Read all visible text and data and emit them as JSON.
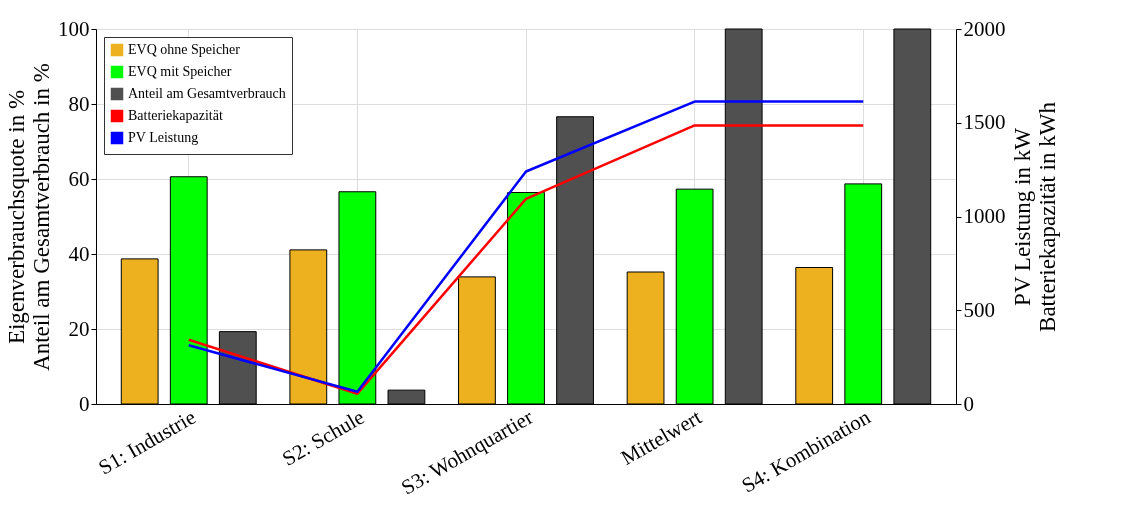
{
  "chart_data": {
    "type": "bar",
    "categories": [
      "S1: Industrie",
      "S2: Schule",
      "S3: Wohnquartier",
      "Mittelwert",
      "S4: Kombination"
    ],
    "ylabel": "Eigenverbrauchsquote in %\nAnteil am Gesamtverbrauch in %",
    "y2label": "PV Leistung in kW\nBatteriekapazität in kWh",
    "series": [
      {
        "name": "EVQ ohne Speicher",
        "color": "#edb120",
        "values": [
          38.7,
          41.1,
          33.9,
          35.2,
          36.4
        ]
      },
      {
        "name": "EVQ mit Speicher",
        "color": "#00ff00",
        "values": [
          60.6,
          56.6,
          56.4,
          57.3,
          58.7
        ]
      },
      {
        "name": "Anteil am Gesamtverbrauch",
        "color": "#505050",
        "values": [
          19.3,
          3.7,
          76.6,
          100,
          100
        ]
      },
      {
        "name": "Batteriekapazität",
        "type": "line",
        "axis": "y2",
        "color": "#ff0000",
        "values": [
          343,
          55,
          1094,
          1486,
          1486
        ]
      },
      {
        "name": "PV Leistung",
        "type": "line",
        "axis": "y2",
        "color": "#0000ff",
        "values": [
          313,
          65,
          1240,
          1613,
          1613
        ]
      }
    ],
    "ylim": [
      0,
      100
    ],
    "yticks": [
      0,
      20,
      40,
      60,
      80,
      100
    ],
    "y2lim": [
      0,
      2000
    ],
    "y2ticks": [
      0,
      500,
      1000,
      1500,
      2000
    ],
    "grid": true,
    "legend": "top left"
  }
}
